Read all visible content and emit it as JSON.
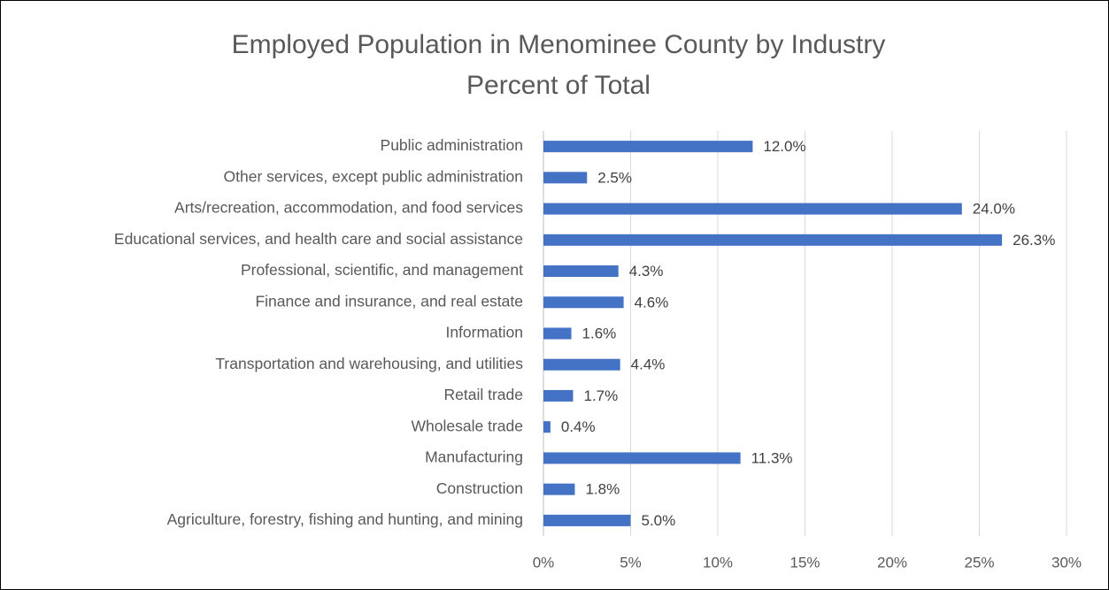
{
  "chart_data": {
    "type": "bar",
    "orientation": "horizontal",
    "title": "Employed Population in Menominee County by Industry",
    "subtitle": "Percent of Total",
    "categories": [
      "Public administration",
      "Other services, except public administration",
      "Arts/recreation, accommodation, and food services",
      "Educational services, and health care and social assistance",
      "Professional, scientific, and management",
      "Finance and insurance, and real estate",
      "Information",
      "Transportation and warehousing, and utilities",
      "Retail trade",
      "Wholesale trade",
      "Manufacturing",
      "Construction",
      "Agriculture, forestry, fishing and hunting, and mining"
    ],
    "values": [
      12.0,
      2.5,
      24.0,
      26.3,
      4.3,
      4.6,
      1.6,
      4.4,
      1.7,
      0.4,
      11.3,
      1.8,
      5.0
    ],
    "value_labels": [
      "12.0%",
      "2.5%",
      "24.0%",
      "26.3%",
      "4.3%",
      "4.6%",
      "1.6%",
      "4.4%",
      "1.7%",
      "0.4%",
      "11.3%",
      "1.8%",
      "5.0%"
    ],
    "color": "#4472c4",
    "xlim": [
      0,
      30
    ],
    "xticks": [
      {
        "value": 0,
        "label": "0%"
      },
      {
        "value": 5,
        "label": "5%"
      },
      {
        "value": 10,
        "label": "10%"
      },
      {
        "value": 15,
        "label": "15%"
      },
      {
        "value": 20,
        "label": "20%"
      },
      {
        "value": 25,
        "label": "25%"
      },
      {
        "value": 30,
        "label": "30%"
      }
    ],
    "grid": true
  }
}
